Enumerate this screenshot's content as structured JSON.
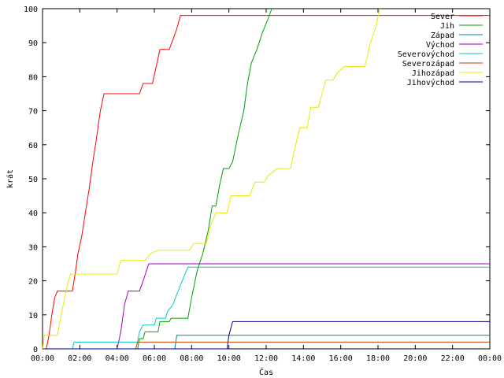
{
  "chart_data": {
    "type": "line",
    "title": "",
    "xlabel": "Čas",
    "ylabel": "krát",
    "xlim": [
      0,
      24
    ],
    "ylim": [
      0,
      100
    ],
    "x_ticks": [
      {
        "value": 0,
        "label": "00:00"
      },
      {
        "value": 2,
        "label": "02:00"
      },
      {
        "value": 4,
        "label": "04:00"
      },
      {
        "value": 6,
        "label": "06:00"
      },
      {
        "value": 8,
        "label": "08:00"
      },
      {
        "value": 10,
        "label": "10:00"
      },
      {
        "value": 12,
        "label": "12:00"
      },
      {
        "value": 14,
        "label": "14:00"
      },
      {
        "value": 16,
        "label": "16:00"
      },
      {
        "value": 18,
        "label": "18:00"
      },
      {
        "value": 20,
        "label": "20:00"
      },
      {
        "value": 22,
        "label": "22:00"
      },
      {
        "value": 24,
        "label": "00:00"
      }
    ],
    "y_ticks": [
      0,
      10,
      20,
      30,
      40,
      50,
      60,
      70,
      80,
      90,
      100
    ],
    "grid": false,
    "legend_position": "top-right",
    "series": [
      {
        "name": "Sever",
        "color": "#ff0000",
        "points": [
          [
            0.2,
            0
          ],
          [
            0.35,
            4
          ],
          [
            0.5,
            10
          ],
          [
            0.65,
            15
          ],
          [
            0.8,
            17
          ],
          [
            1.6,
            17
          ],
          [
            1.75,
            22
          ],
          [
            1.9,
            28
          ],
          [
            2.1,
            33
          ],
          [
            2.3,
            40
          ],
          [
            2.5,
            47
          ],
          [
            2.7,
            55
          ],
          [
            2.9,
            62
          ],
          [
            3.1,
            70
          ],
          [
            3.3,
            75
          ],
          [
            5.2,
            75
          ],
          [
            5.4,
            78
          ],
          [
            5.9,
            78
          ],
          [
            6.1,
            83
          ],
          [
            6.3,
            88
          ],
          [
            6.8,
            88
          ],
          [
            7.0,
            91
          ],
          [
            7.2,
            94
          ],
          [
            7.4,
            98
          ],
          [
            24,
            98
          ]
        ]
      },
      {
        "name": "Jih",
        "color": "#00a000",
        "points": [
          [
            0,
            0
          ],
          [
            5.1,
            0
          ],
          [
            5.2,
            3
          ],
          [
            5.4,
            3
          ],
          [
            5.5,
            5
          ],
          [
            6.2,
            5
          ],
          [
            6.3,
            8
          ],
          [
            6.8,
            8
          ],
          [
            6.9,
            9
          ],
          [
            7.8,
            9
          ],
          [
            8.0,
            15
          ],
          [
            8.3,
            23
          ],
          [
            8.6,
            28
          ],
          [
            8.9,
            35
          ],
          [
            9.1,
            42
          ],
          [
            9.3,
            42
          ],
          [
            9.5,
            48
          ],
          [
            9.7,
            53
          ],
          [
            10.0,
            53
          ],
          [
            10.2,
            55
          ],
          [
            10.5,
            63
          ],
          [
            10.8,
            70
          ],
          [
            11.0,
            78
          ],
          [
            11.2,
            84
          ],
          [
            11.5,
            88
          ],
          [
            11.8,
            93
          ],
          [
            12.1,
            97
          ],
          [
            12.3,
            100
          ]
        ]
      },
      {
        "name": "Západ",
        "color": "#0080a0",
        "points": [
          [
            0,
            0
          ],
          [
            7.1,
            0
          ],
          [
            7.2,
            4
          ],
          [
            24,
            4
          ]
        ]
      },
      {
        "name": "Východ",
        "color": "#a000c0",
        "points": [
          [
            0,
            0
          ],
          [
            4.0,
            0
          ],
          [
            4.2,
            5
          ],
          [
            4.4,
            13
          ],
          [
            4.6,
            17
          ],
          [
            5.2,
            17
          ],
          [
            5.4,
            20
          ],
          [
            5.7,
            25
          ],
          [
            24,
            25
          ]
        ]
      },
      {
        "name": "Severovýchod",
        "color": "#00c8c8",
        "points": [
          [
            0,
            0
          ],
          [
            1.6,
            0
          ],
          [
            1.7,
            2
          ],
          [
            5.1,
            2
          ],
          [
            5.2,
            5
          ],
          [
            5.4,
            7
          ],
          [
            6.0,
            7
          ],
          [
            6.1,
            9
          ],
          [
            6.6,
            9
          ],
          [
            6.7,
            11
          ],
          [
            7.0,
            13
          ],
          [
            7.2,
            16
          ],
          [
            7.5,
            20
          ],
          [
            7.8,
            24
          ],
          [
            24,
            24
          ]
        ]
      },
      {
        "name": "Severozápad",
        "color": "#c04000",
        "points": [
          [
            0,
            0
          ],
          [
            5.0,
            0
          ],
          [
            5.1,
            2
          ],
          [
            24,
            2
          ]
        ]
      },
      {
        "name": "Jihozápad",
        "color": "#e8e800",
        "points": [
          [
            0,
            0
          ],
          [
            0.1,
            4
          ],
          [
            0.8,
            4
          ],
          [
            1.0,
            10
          ],
          [
            1.3,
            18
          ],
          [
            1.5,
            22
          ],
          [
            3.8,
            22
          ],
          [
            4.0,
            22
          ],
          [
            4.2,
            26
          ],
          [
            5.5,
            26
          ],
          [
            5.8,
            28
          ],
          [
            6.2,
            29
          ],
          [
            7.9,
            29
          ],
          [
            8.1,
            31
          ],
          [
            8.8,
            31
          ],
          [
            9.0,
            36
          ],
          [
            9.3,
            40
          ],
          [
            9.9,
            40
          ],
          [
            10.1,
            45
          ],
          [
            11.1,
            45
          ],
          [
            11.4,
            49
          ],
          [
            11.9,
            49
          ],
          [
            12.1,
            51
          ],
          [
            12.6,
            53
          ],
          [
            13.3,
            53
          ],
          [
            13.5,
            58
          ],
          [
            13.8,
            65
          ],
          [
            14.2,
            65
          ],
          [
            14.4,
            71
          ],
          [
            14.8,
            71
          ],
          [
            15.0,
            75
          ],
          [
            15.2,
            79
          ],
          [
            15.6,
            79
          ],
          [
            15.8,
            81
          ],
          [
            16.2,
            83
          ],
          [
            17.3,
            83
          ],
          [
            17.6,
            90
          ],
          [
            17.9,
            95
          ],
          [
            18.1,
            100
          ]
        ]
      },
      {
        "name": "Jihovýchod",
        "color": "#000080",
        "points": [
          [
            0,
            0
          ],
          [
            9.9,
            0
          ],
          [
            10.0,
            4
          ],
          [
            10.2,
            8
          ],
          [
            24,
            8
          ]
        ]
      }
    ]
  }
}
